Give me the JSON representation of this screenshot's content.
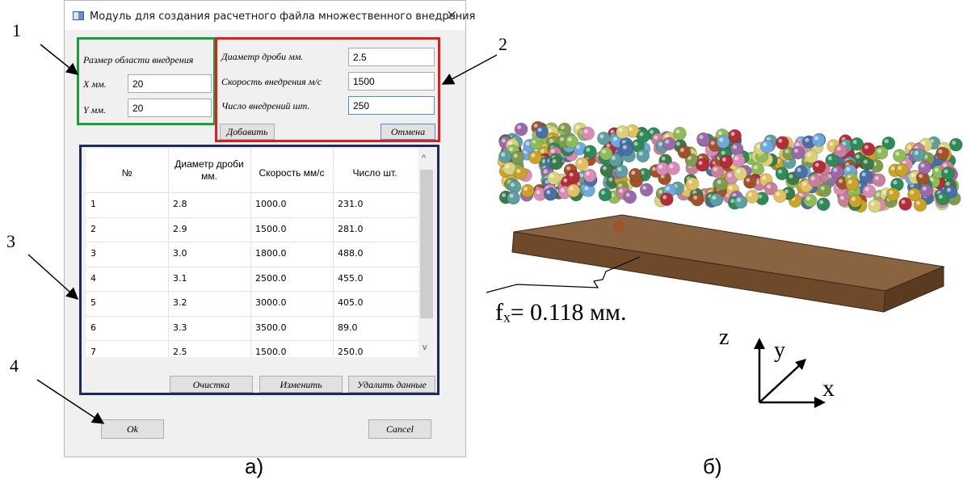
{
  "dialog": {
    "title": "Модуль для создания расчетного файла множественного внедрения",
    "close_glyph": "×",
    "area": {
      "heading": "Размер области внедрения",
      "x_label": "X мм.",
      "x_value": "20",
      "y_label": "Y мм.",
      "y_value": "20"
    },
    "params": {
      "diameter_label": "Диаметр дроби мм.",
      "diameter_value": "2.5",
      "speed_label": "Скорость внедрения м/с",
      "speed_value": "1500",
      "count_label": "Число внедрений шт.",
      "count_value": "250",
      "add_label": "Добавить",
      "cancel_label": "Отмена"
    },
    "table": {
      "headers": [
        "№",
        "Диаметр дроби мм.",
        "Скорость мм/с",
        "Число шт."
      ],
      "rows": [
        [
          "1",
          "2.8",
          "1000.0",
          "231.0"
        ],
        [
          "2",
          "2.9",
          "1500.0",
          "281.0"
        ],
        [
          "3",
          "3.0",
          "1800.0",
          "488.0"
        ],
        [
          "4",
          "3.1",
          "2500.0",
          "455.0"
        ],
        [
          "5",
          "3.2",
          "3000.0",
          "405.0"
        ],
        [
          "6",
          "3.3",
          "3500.0",
          "89.0"
        ],
        [
          "7",
          "2.5",
          "1500.0",
          "250.0"
        ]
      ],
      "scroll_up": "^",
      "scroll_down": "v"
    },
    "actions": {
      "clear_label": "Очистка",
      "edit_label": "Изменить",
      "delete_label": "Удалить данные"
    },
    "footer": {
      "ok_label": "Ok",
      "cancel_label": "Cancel"
    }
  },
  "callouts": [
    "1",
    "2",
    "3",
    "4"
  ],
  "captions": {
    "left": "а)",
    "right": "б)"
  },
  "model": {
    "deflection_label": "fₓ= 0.118 мм.",
    "axis_z": "z",
    "axis_y": "y",
    "axis_x": "x"
  },
  "colors": {
    "green_frame": "#1a9e3a",
    "red_frame": "#e01e1e",
    "navy_frame": "#1c2a5e",
    "plate": "#7a5434"
  }
}
